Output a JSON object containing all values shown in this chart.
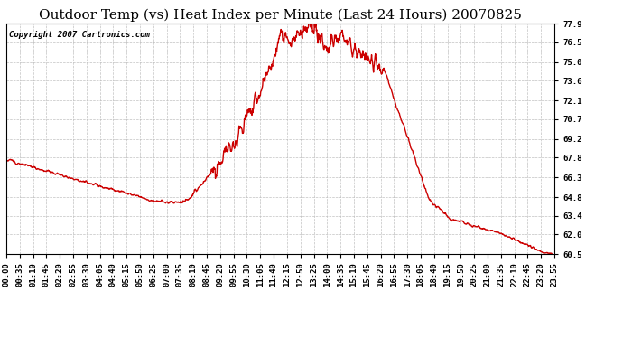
{
  "title": "Outdoor Temp (vs) Heat Index per Minute (Last 24 Hours) 20070825",
  "copyright_text": "Copyright 2007 Cartronics.com",
  "line_color": "#cc0000",
  "background_color": "#ffffff",
  "grid_color": "#bbbbbb",
  "yticks": [
    60.5,
    62.0,
    63.4,
    64.8,
    66.3,
    67.8,
    69.2,
    70.7,
    72.1,
    73.6,
    75.0,
    76.5,
    77.9
  ],
  "ylim": [
    60.5,
    77.9
  ],
  "xtick_labels": [
    "00:00",
    "00:35",
    "01:10",
    "01:45",
    "02:20",
    "02:55",
    "03:30",
    "04:05",
    "04:40",
    "05:15",
    "05:50",
    "06:25",
    "07:00",
    "07:35",
    "08:10",
    "08:45",
    "09:20",
    "09:55",
    "10:30",
    "11:05",
    "11:40",
    "12:15",
    "12:50",
    "13:25",
    "14:00",
    "14:35",
    "15:10",
    "15:45",
    "16:20",
    "16:55",
    "17:30",
    "18:05",
    "18:40",
    "19:15",
    "19:50",
    "20:25",
    "21:00",
    "21:35",
    "22:10",
    "22:45",
    "23:20",
    "23:55"
  ],
  "title_fontsize": 11,
  "copyright_fontsize": 6.5,
  "tick_fontsize": 6.5,
  "line_width": 1.0
}
